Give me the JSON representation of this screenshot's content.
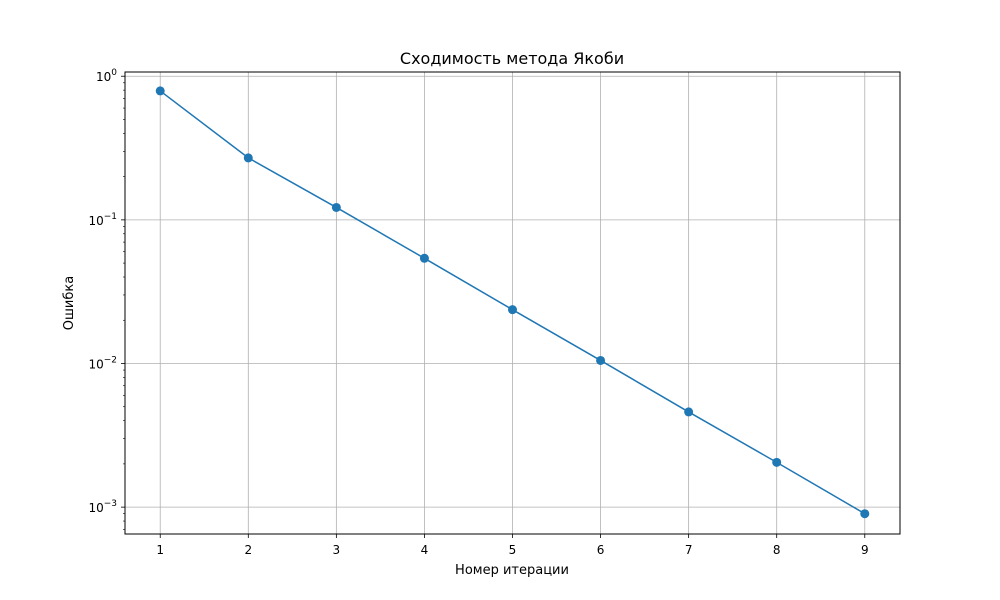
{
  "chart_data": {
    "type": "line",
    "title": "Сходимость метода Якоби",
    "xlabel": "Номер итерации",
    "ylabel": "Ошибка",
    "yscale": "log",
    "grid": true,
    "xlim": [
      0.6,
      9.4
    ],
    "ylim": [
      0.00065,
      1.07
    ],
    "x_ticks": [
      1,
      2,
      3,
      4,
      5,
      6,
      7,
      8,
      9
    ],
    "y_ticks": [
      {
        "value": 0.001,
        "base": "10",
        "exp": "−3"
      },
      {
        "value": 0.01,
        "base": "10",
        "exp": "−2"
      },
      {
        "value": 0.1,
        "base": "10",
        "exp": "−1"
      },
      {
        "value": 1,
        "base": "10",
        "exp": "0"
      }
    ],
    "series": [
      {
        "color": "#1f77b4",
        "marker": "circle",
        "x": [
          1,
          2,
          3,
          4,
          5,
          6,
          7,
          8,
          9
        ],
        "y": [
          0.79,
          0.27,
          0.122,
          0.054,
          0.0237,
          0.0105,
          0.0046,
          0.00205,
          0.0009
        ]
      }
    ]
  }
}
